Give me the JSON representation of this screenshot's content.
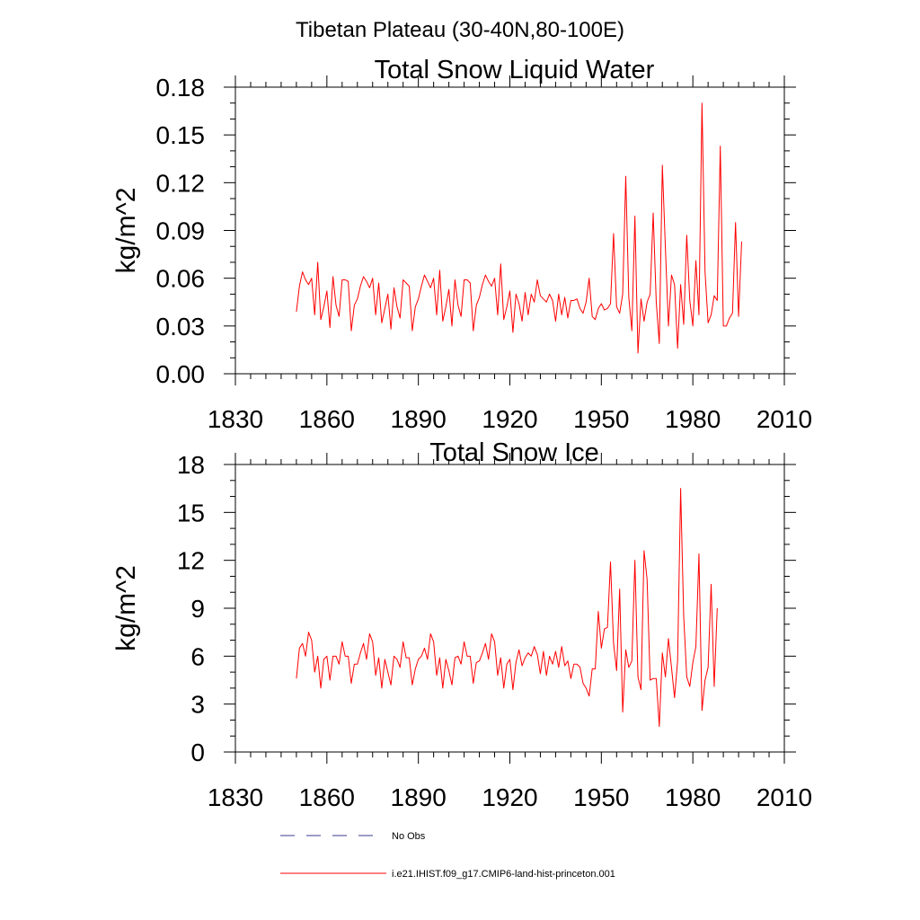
{
  "figure": {
    "title": "Tibetan Plateau (30-40N,80-100E)"
  },
  "colors": {
    "series_line": "#ff0000",
    "obs_line": "#3b3b8f",
    "axis": "#000000"
  },
  "legend": {
    "placement": "bottom-center",
    "items": [
      {
        "label": "No Obs",
        "style": "dashed",
        "color": "#3b3b8f"
      },
      {
        "label": "i.e21.IHIST.f09_g17.CMIP6-land-hist-princeton.001",
        "style": "solid",
        "color": "#ff0000"
      }
    ]
  },
  "chart_data": [
    {
      "type": "line",
      "title": "Total Snow Liquid Water",
      "xlabel": "",
      "ylabel": "kg/m^2",
      "xlim": [
        1830,
        2010
      ],
      "ylim": [
        0,
        0.18
      ],
      "x_ticks": [
        "1830",
        "1860",
        "1890",
        "1920",
        "1950",
        "1980",
        "2010"
      ],
      "y_ticks": [
        "0.00",
        "0.03",
        "0.06",
        "0.09",
        "0.12",
        "0.15",
        "0.18"
      ],
      "x_start": 1850,
      "series": [
        {
          "name": "i.e21.IHIST.f09_g17.CMIP6-land-hist-princeton.001",
          "values": [
            0.039,
            0.055,
            0.064,
            0.059,
            0.056,
            0.06,
            0.037,
            0.07,
            0.034,
            0.042,
            0.052,
            0.029,
            0.061,
            0.043,
            0.036,
            0.059,
            0.059,
            0.058,
            0.027,
            0.043,
            0.047,
            0.055,
            0.061,
            0.058,
            0.054,
            0.06,
            0.037,
            0.057,
            0.032,
            0.041,
            0.05,
            0.028,
            0.054,
            0.042,
            0.035,
            0.059,
            0.057,
            0.055,
            0.027,
            0.042,
            0.047,
            0.055,
            0.062,
            0.058,
            0.054,
            0.06,
            0.037,
            0.065,
            0.033,
            0.042,
            0.053,
            0.03,
            0.059,
            0.043,
            0.036,
            0.059,
            0.059,
            0.057,
            0.027,
            0.043,
            0.048,
            0.056,
            0.062,
            0.058,
            0.055,
            0.06,
            0.037,
            0.069,
            0.034,
            0.042,
            0.052,
            0.026,
            0.05,
            0.044,
            0.033,
            0.051,
            0.037,
            0.05,
            0.045,
            0.059,
            0.049,
            0.047,
            0.045,
            0.05,
            0.046,
            0.033,
            0.05,
            0.037,
            0.048,
            0.035,
            0.046,
            0.046,
            0.047,
            0.041,
            0.038,
            0.045,
            0.06,
            0.036,
            0.034,
            0.041,
            0.044,
            0.04,
            0.041,
            0.044,
            0.088,
            0.042,
            0.038,
            0.05,
            0.124,
            0.048,
            0.027,
            0.099,
            0.013,
            0.047,
            0.033,
            0.045,
            0.05,
            0.101,
            0.045,
            0.019,
            0.131,
            0.079,
            0.03,
            0.062,
            0.056,
            0.016,
            0.056,
            0.031,
            0.087,
            0.046,
            0.03,
            0.071,
            0.037,
            0.17,
            0.064,
            0.032,
            0.037,
            0.049,
            0.046,
            0.143,
            0.03,
            0.03,
            0.035,
            0.038,
            0.095,
            0.036,
            0.083
          ]
        }
      ]
    },
    {
      "type": "line",
      "title": "Total Snow Ice",
      "xlabel": "",
      "ylabel": "kg/m^2",
      "xlim": [
        1830,
        2010
      ],
      "ylim": [
        0,
        18
      ],
      "x_ticks": [
        "1830",
        "1860",
        "1890",
        "1920",
        "1950",
        "1980",
        "2010"
      ],
      "y_ticks": [
        "0",
        "3",
        "6",
        "9",
        "12",
        "15",
        "18"
      ],
      "x_start": 1850,
      "series": [
        {
          "name": "i.e21.IHIST.f09_g17.CMIP6-land-hist-princeton.001",
          "values": [
            4.6,
            6.5,
            6.8,
            6.0,
            7.5,
            7.0,
            5.0,
            6.0,
            4.0,
            5.8,
            6.0,
            4.5,
            6.0,
            6.0,
            5.5,
            6.9,
            6.0,
            6.0,
            4.3,
            5.5,
            5.5,
            6.2,
            6.8,
            5.8,
            7.4,
            6.9,
            4.8,
            5.9,
            4.0,
            5.8,
            5.0,
            4.2,
            6.0,
            5.8,
            5.3,
            6.9,
            5.9,
            5.9,
            4.2,
            5.2,
            5.8,
            6.0,
            6.5,
            5.8,
            7.4,
            6.9,
            4.8,
            5.9,
            4.0,
            5.8,
            5.1,
            4.2,
            5.9,
            6.0,
            5.5,
            6.9,
            6.0,
            6.0,
            4.3,
            5.6,
            5.7,
            6.2,
            6.8,
            5.8,
            7.4,
            6.9,
            4.8,
            5.9,
            4.0,
            5.5,
            5.8,
            3.9,
            5.6,
            6.4,
            5.4,
            5.9,
            6.2,
            6.0,
            6.6,
            6.1,
            4.9,
            6.3,
            4.8,
            6.0,
            5.5,
            6.3,
            5.3,
            6.6,
            5.4,
            5.7,
            4.6,
            5.5,
            5.5,
            5.3,
            4.3,
            4.0,
            3.5,
            5.2,
            5.2,
            8.8,
            6.5,
            7.7,
            7.8,
            11.9,
            6.8,
            5.1,
            10.2,
            2.5,
            6.4,
            5.3,
            5.7,
            12.0,
            4.7,
            3.9,
            12.6,
            10.8,
            4.5,
            4.6,
            4.6,
            1.6,
            6.2,
            4.7,
            7.1,
            5.3,
            3.4,
            5.7,
            16.5,
            8.5,
            4.7,
            4.1,
            5.6,
            6.6,
            12.4,
            2.6,
            4.5,
            5.3,
            10.5,
            4.1,
            9.0
          ]
        }
      ]
    }
  ]
}
